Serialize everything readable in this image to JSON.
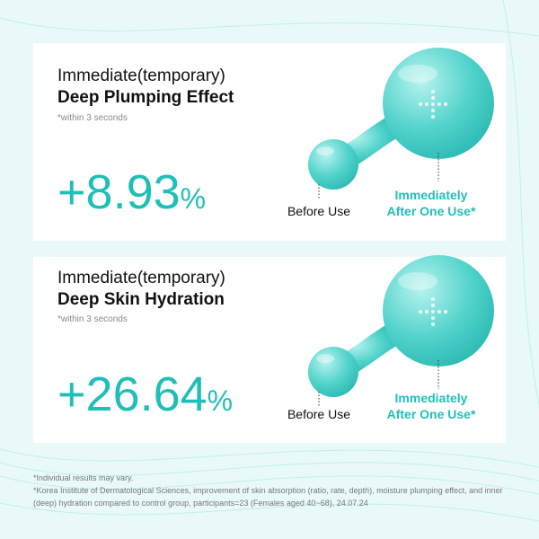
{
  "panels": [
    {
      "line1": "Immediate(temporary)",
      "line2": "Deep Plumping Effect",
      "note": "*within 3 seconds",
      "value": "+8.93",
      "unit": "%",
      "before": "Before Use",
      "after1": "Immediately",
      "after2": "After One Use*"
    },
    {
      "line1": "Immediate(temporary)",
      "line2": "Deep Skin Hydration",
      "note": "*within 3 seconds",
      "value": "+26.64",
      "unit": "%",
      "before": "Before Use",
      "after1": "Immediately",
      "after2": "After One Use*"
    }
  ],
  "footnote": [
    "*Individual results may vary.",
    "*Korea Institute of Dermatological Sciences, improvement of skin absorption (ratio, rate, depth), moisture plumping effect, and inner",
    "(deep) hydration compared to control group, participants=23 (Females aged 40~68), 24.07.24"
  ]
}
